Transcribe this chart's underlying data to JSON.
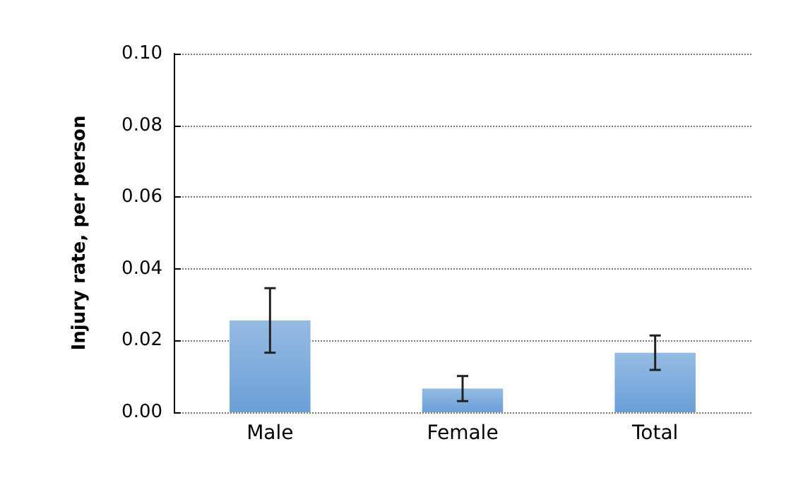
{
  "chart_data": {
    "type": "bar",
    "ylabel": "Injury rate, per person",
    "categories": [
      "Male",
      "Female",
      "Total"
    ],
    "values": [
      0.0256,
      0.0066,
      0.0166
    ],
    "errors": [
      0.009,
      0.0035,
      0.0048
    ],
    "color": "#6a9fd8",
    "ylim": [
      0,
      0.1
    ],
    "yticks": [
      {
        "value": 0,
        "label": "0.00"
      },
      {
        "value": 0.02,
        "label": "0.02"
      },
      {
        "value": 0.04,
        "label": "0.04"
      },
      {
        "value": 0.06,
        "label": "0.06"
      },
      {
        "value": 0.08,
        "label": "0.08"
      },
      {
        "value": 0.1,
        "label": "0.10"
      }
    ],
    "grid": "y"
  }
}
